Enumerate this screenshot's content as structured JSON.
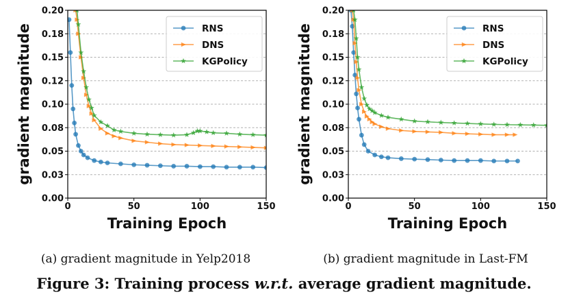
{
  "figure": {
    "caption_prefix": "Figure 3: Training process ",
    "caption_italic": "w.r.t.",
    "caption_suffix": " average gradient magnitude."
  },
  "colors": {
    "RNS": "#1f77b4",
    "DNS": "#ff7f0e",
    "KGPolicy": "#2ca02c"
  },
  "chart_data": [
    {
      "type": "line",
      "caption": "(a)  gradient magnitude in Yelp2018",
      "xlabel": "Training Epoch",
      "ylabel": "gradient magnitude",
      "xlim": [
        0,
        150
      ],
      "ylim": [
        0,
        0.2
      ],
      "xticks": [
        "0",
        "50",
        "100",
        "150"
      ],
      "yticks": [
        "0.00",
        "0.03",
        "0.05",
        "0.08",
        "0.10",
        "0.12",
        "0.15",
        "0.18",
        "0.20"
      ],
      "ytick_values": [
        0,
        0.025,
        0.05,
        0.075,
        0.1,
        0.125,
        0.15,
        0.175,
        0.2
      ],
      "legend": [
        "RNS",
        "DNS",
        "KGPolicy"
      ],
      "legend_position": "top-right",
      "grid": "horizontal dashed",
      "series": [
        {
          "name": "RNS",
          "x": [
            1,
            2,
            3,
            4,
            5,
            6,
            8,
            10,
            12,
            15,
            20,
            25,
            30,
            40,
            50,
            60,
            70,
            80,
            90,
            100,
            110,
            120,
            130,
            140,
            150
          ],
          "y": [
            0.19,
            0.155,
            0.12,
            0.095,
            0.08,
            0.068,
            0.056,
            0.05,
            0.046,
            0.043,
            0.04,
            0.0385,
            0.0375,
            0.0365,
            0.0355,
            0.035,
            0.0345,
            0.034,
            0.034,
            0.0335,
            0.0335,
            0.033,
            0.033,
            0.033,
            0.0325
          ]
        },
        {
          "name": "DNS",
          "x": [
            6,
            7,
            8,
            10,
            12,
            14,
            16,
            18,
            20,
            25,
            30,
            35,
            40,
            50,
            60,
            70,
            80,
            90,
            100,
            110,
            120,
            130,
            140,
            150
          ],
          "y": [
            0.2,
            0.19,
            0.175,
            0.15,
            0.128,
            0.11,
            0.098,
            0.09,
            0.083,
            0.074,
            0.069,
            0.066,
            0.064,
            0.061,
            0.0595,
            0.058,
            0.057,
            0.0565,
            0.056,
            0.0555,
            0.055,
            0.0545,
            0.054,
            0.0535
          ]
        },
        {
          "name": "KGPolicy",
          "x": [
            7,
            8,
            10,
            12,
            14,
            16,
            18,
            20,
            25,
            30,
            35,
            40,
            50,
            60,
            70,
            80,
            90,
            95,
            98,
            100,
            105,
            110,
            120,
            130,
            140,
            150
          ],
          "y": [
            0.2,
            0.185,
            0.155,
            0.135,
            0.118,
            0.105,
            0.096,
            0.088,
            0.081,
            0.077,
            0.0725,
            0.071,
            0.069,
            0.068,
            0.0675,
            0.067,
            0.0675,
            0.0695,
            0.0715,
            0.0715,
            0.0705,
            0.0695,
            0.069,
            0.068,
            0.0675,
            0.067
          ]
        }
      ]
    },
    {
      "type": "line",
      "caption": "(b)  gradient magnitude in Last-FM",
      "xlabel": "Training Epoch",
      "ylabel": "gradient magnitude",
      "xlim": [
        0,
        150
      ],
      "ylim": [
        0,
        0.2
      ],
      "xticks": [
        "0",
        "50",
        "100",
        "150"
      ],
      "yticks": [
        "0.00",
        "0.03",
        "0.05",
        "0.08",
        "0.10",
        "0.12",
        "0.15",
        "0.18",
        "0.20"
      ],
      "ytick_values": [
        0,
        0.025,
        0.05,
        0.075,
        0.1,
        0.125,
        0.15,
        0.175,
        0.2
      ],
      "legend": [
        "RNS",
        "DNS",
        "KGPolicy"
      ],
      "legend_position": "top-right",
      "grid": "horizontal dashed",
      "series": [
        {
          "name": "RNS",
          "x": [
            2,
            3,
            4,
            5,
            6,
            7,
            8,
            10,
            12,
            15,
            20,
            25,
            30,
            40,
            50,
            60,
            70,
            80,
            90,
            100,
            110,
            120,
            128
          ],
          "y": [
            0.2,
            0.183,
            0.155,
            0.131,
            0.111,
            0.096,
            0.084,
            0.067,
            0.057,
            0.05,
            0.046,
            0.044,
            0.043,
            0.042,
            0.0415,
            0.041,
            0.0405,
            0.04,
            0.04,
            0.04,
            0.0395,
            0.0395,
            0.0395
          ]
        },
        {
          "name": "DNS",
          "x": [
            3,
            4,
            5,
            6,
            7,
            8,
            10,
            12,
            14,
            16,
            18,
            20,
            25,
            30,
            40,
            50,
            60,
            70,
            80,
            90,
            100,
            110,
            120,
            126
          ],
          "y": [
            0.2,
            0.19,
            0.165,
            0.145,
            0.128,
            0.115,
            0.1,
            0.092,
            0.087,
            0.084,
            0.081,
            0.079,
            0.076,
            0.074,
            0.072,
            0.071,
            0.0705,
            0.07,
            0.069,
            0.0685,
            0.068,
            0.0675,
            0.0675,
            0.0675
          ]
        },
        {
          "name": "KGPolicy",
          "x": [
            4,
            5,
            6,
            7,
            8,
            10,
            12,
            14,
            16,
            18,
            20,
            25,
            30,
            40,
            50,
            60,
            70,
            80,
            90,
            100,
            110,
            120,
            130,
            140,
            150
          ],
          "y": [
            0.2,
            0.19,
            0.17,
            0.15,
            0.137,
            0.118,
            0.106,
            0.099,
            0.095,
            0.093,
            0.091,
            0.088,
            0.086,
            0.084,
            0.082,
            0.0812,
            0.0805,
            0.08,
            0.0795,
            0.079,
            0.0785,
            0.0782,
            0.078,
            0.0778,
            0.0775
          ]
        }
      ]
    }
  ]
}
